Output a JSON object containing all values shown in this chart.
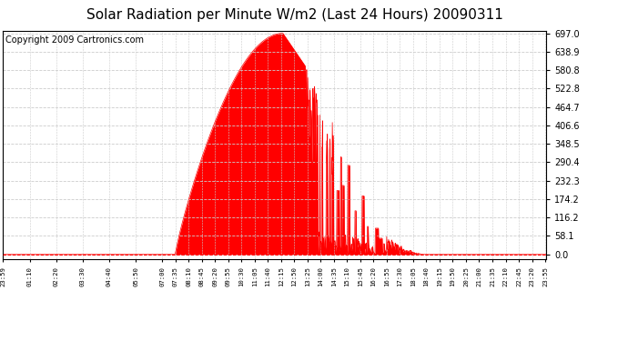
{
  "title": "Solar Radiation per Minute W/m2 (Last 24 Hours) 20090311",
  "copyright": "Copyright 2009 Cartronics.com",
  "y_ticks": [
    0.0,
    58.1,
    116.2,
    174.2,
    232.3,
    290.4,
    348.5,
    406.6,
    464.7,
    522.8,
    580.8,
    638.9,
    697.0
  ],
  "y_max": 697.0,
  "y_min": 0.0,
  "fill_color": "#FF0000",
  "line_color": "#FF0000",
  "grid_color": "#CCCCCC",
  "bg_color": "#FFFFFF",
  "title_fontsize": 11,
  "copyright_fontsize": 7,
  "x_labels": [
    "23:59",
    "01:10",
    "02:20",
    "03:30",
    "04:40",
    "05:50",
    "07:00",
    "07:35",
    "08:10",
    "08:45",
    "09:20",
    "09:55",
    "10:30",
    "11:05",
    "11:40",
    "12:15",
    "12:50",
    "13:25",
    "14:00",
    "14:35",
    "15:10",
    "15:45",
    "16:20",
    "16:55",
    "17:30",
    "18:05",
    "18:40",
    "19:15",
    "19:50",
    "20:25",
    "21:00",
    "21:35",
    "22:10",
    "22:45",
    "23:20",
    "23:55"
  ]
}
